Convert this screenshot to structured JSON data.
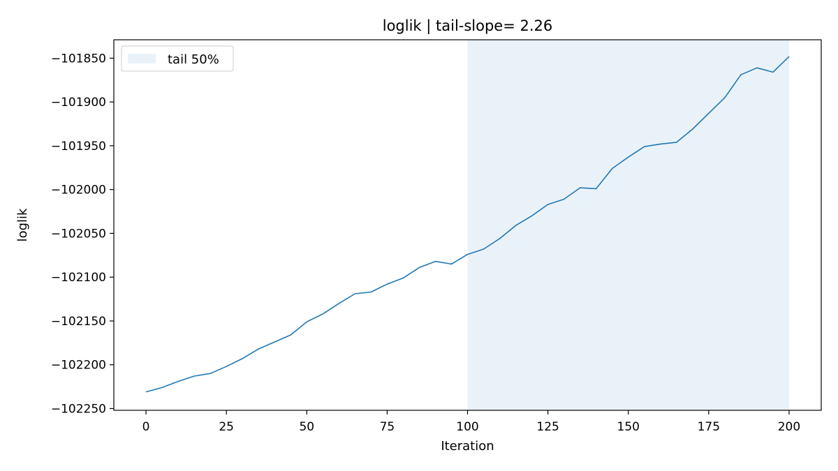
{
  "chart_data": {
    "type": "line",
    "title": "loglik | tail-slope= 2.26",
    "xlabel": "Iteration",
    "ylabel": "loglik",
    "xlim": [
      -10,
      210
    ],
    "ylim": [
      -102252,
      -101829
    ],
    "xticks": [
      0,
      25,
      50,
      75,
      100,
      125,
      150,
      175,
      200
    ],
    "yticks": [
      -102250,
      -102200,
      -102150,
      -102100,
      -102050,
      -102000,
      -101950,
      -101900,
      -101850
    ],
    "xtick_labels": [
      "0",
      "25",
      "50",
      "75",
      "100",
      "125",
      "150",
      "175",
      "200"
    ],
    "ytick_labels": [
      "−102250",
      "−102200",
      "−102150",
      "−102100",
      "−102050",
      "−102000",
      "−101950",
      "−101900",
      "−101850"
    ],
    "grid": false,
    "legend": {
      "placement": "top-left",
      "entries": [
        "tail 50%"
      ]
    },
    "shaded_region": {
      "label": "tail 50%",
      "x_start": 100,
      "x_end": 200,
      "color": "#eaf2f9"
    },
    "line_color": "#1f77b4",
    "x": [
      0,
      5,
      10,
      15,
      20,
      25,
      30,
      35,
      40,
      45,
      50,
      55,
      60,
      65,
      70,
      75,
      80,
      85,
      90,
      95,
      100,
      105,
      110,
      115,
      120,
      125,
      130,
      135,
      140,
      145,
      150,
      155,
      160,
      165,
      170,
      175,
      180,
      185,
      190,
      195,
      200
    ],
    "y": [
      -102231,
      -102226,
      -102219,
      -102213,
      -102210,
      -102202,
      -102193,
      -102182,
      -102174,
      -102166,
      -102151,
      -102142,
      -102130,
      -102119,
      -102117,
      -102108,
      -102101,
      -102089,
      -102082,
      -102085,
      -102074,
      -102068,
      -102056,
      -102041,
      -102030,
      -102017,
      -102011,
      -101998,
      -101999,
      -101976,
      -101963,
      -101951,
      -101948,
      -101946,
      -101931,
      -101913,
      -101895,
      -101869,
      -101861,
      -101866,
      -101848
    ]
  }
}
